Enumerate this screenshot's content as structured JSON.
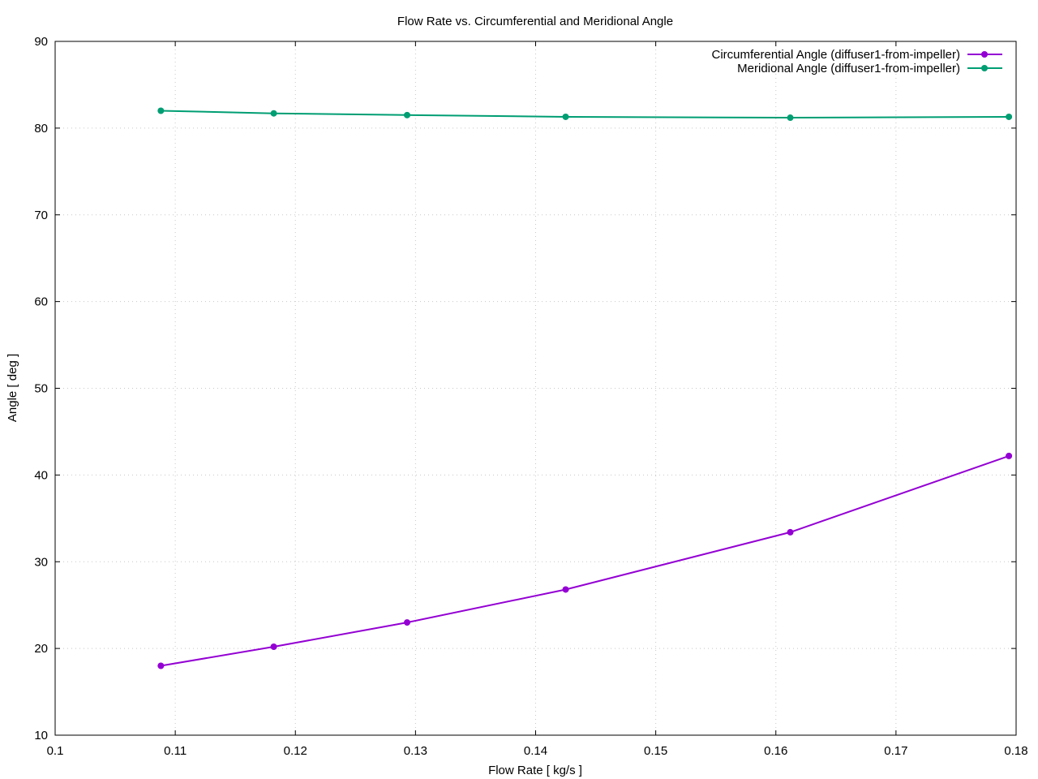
{
  "chart_data": {
    "type": "line",
    "title": "Flow Rate vs. Circumferential and Meridional Angle",
    "xlabel": "Flow Rate [ kg/s ]",
    "ylabel": "Angle [ deg ]",
    "xlim": [
      0.1,
      0.18
    ],
    "ylim": [
      10,
      90
    ],
    "xticks": [
      0.1,
      0.11,
      0.12,
      0.13,
      0.14,
      0.15,
      0.16,
      0.17,
      0.18
    ],
    "xtick_labels": [
      "0.1",
      "0.11",
      "0.12",
      "0.13",
      "0.14",
      "0.15",
      "0.16",
      "0.17",
      "0.18"
    ],
    "yticks": [
      10,
      20,
      30,
      40,
      50,
      60,
      70,
      80,
      90
    ],
    "ytick_labels": [
      "10",
      "20",
      "30",
      "40",
      "50",
      "60",
      "70",
      "80",
      "90"
    ],
    "grid": true,
    "legend_position": "top-right",
    "series": [
      {
        "name": "Circumferential Angle (diffuser1-from-impeller)",
        "color": "#9400d3",
        "x": [
          0.1088,
          0.1182,
          0.1293,
          0.1425,
          0.1612,
          0.1794
        ],
        "y": [
          18.0,
          20.2,
          23.0,
          26.8,
          33.4,
          42.2
        ]
      },
      {
        "name": "Meridional Angle (diffuser1-from-impeller)",
        "color": "#009e73",
        "x": [
          0.1088,
          0.1182,
          0.1293,
          0.1425,
          0.1612,
          0.1794
        ],
        "y": [
          82.0,
          81.7,
          81.5,
          81.3,
          81.2,
          81.3
        ]
      }
    ]
  }
}
